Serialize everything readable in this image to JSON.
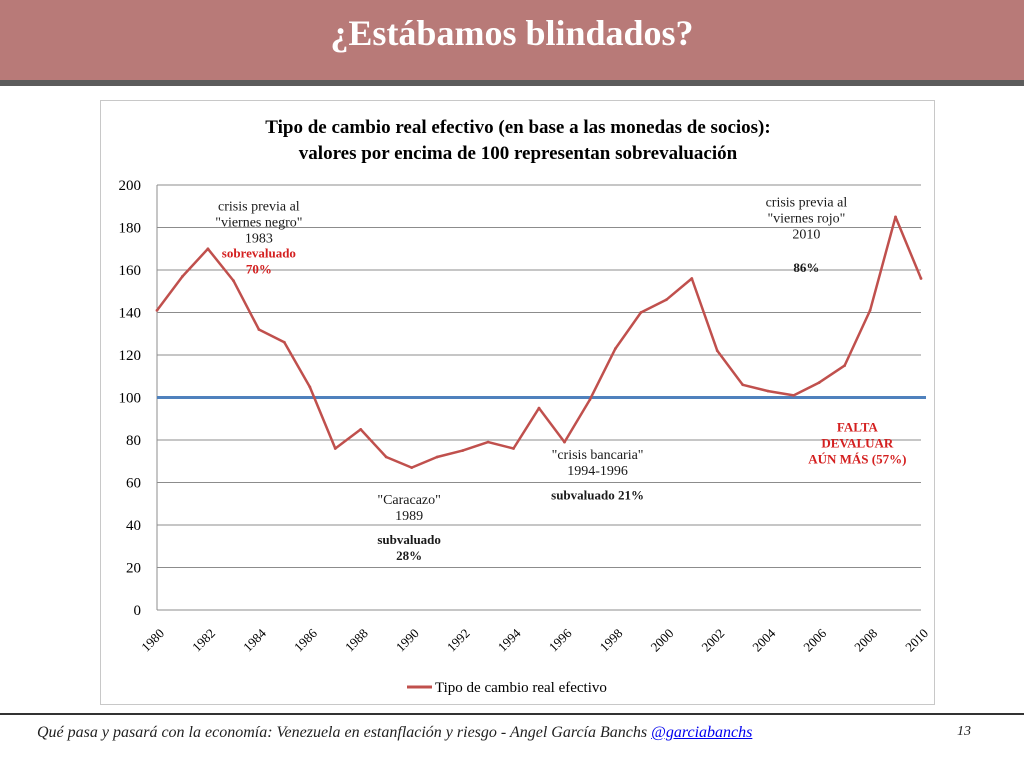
{
  "slide": {
    "title": "¿Estábamos blindados?",
    "footer_text": "Qué pasa y pasará con la economía: Venezuela en estanflación y riesgo - Angel García Banchs",
    "footer_link": "@garciabanchs",
    "page_number": "13"
  },
  "chart_data": {
    "type": "line",
    "title_lines": [
      "Tipo de cambio real efectivo (en base a las monedas de socios):",
      "valores por encima de 100 representan  sobrevaluación"
    ],
    "xlabel": "",
    "ylabel": "",
    "ylim": [
      0,
      200
    ],
    "yticks": [
      "0",
      "20",
      "40",
      "60",
      "80",
      "100",
      "120",
      "140",
      "160",
      "180",
      "200"
    ],
    "xlim": [
      1980,
      2010
    ],
    "xticks": [
      "1980",
      "1982",
      "1984",
      "1986",
      "1988",
      "1990",
      "1992",
      "1994",
      "1996",
      "1998",
      "2000",
      "2002",
      "2004",
      "2006",
      "2008",
      "2010"
    ],
    "grid": "horizontal",
    "legend_position": "bottom",
    "series": [
      {
        "name": "Tipo de cambio real efectivo",
        "color": "#c0504d",
        "x": [
          1980,
          1981,
          1982,
          1983,
          1984,
          1985,
          1986,
          1987,
          1988,
          1989,
          1990,
          1991,
          1992,
          1993,
          1994,
          1995,
          1996,
          1997,
          1998,
          1999,
          2000,
          2001,
          2002,
          2003,
          2004,
          2005,
          2006,
          2007,
          2008,
          2009,
          2010
        ],
        "values": [
          141,
          157,
          170,
          155,
          132,
          126,
          105,
          76,
          85,
          72,
          67,
          72,
          75,
          79,
          76,
          95,
          79,
          99,
          123,
          140,
          146,
          156,
          122,
          106,
          103,
          101,
          107,
          115,
          141,
          185,
          156
        ]
      }
    ],
    "reference_line": {
      "value": 100,
      "color": "#4f81bd"
    },
    "annotations": [
      {
        "lines": [
          "crisis previa al",
          "\"viernes negro\"",
          "1983"
        ],
        "x": 1984,
        "y": 188,
        "color": "#1a1a1a",
        "bold": false
      },
      {
        "lines": [
          "sobrevaluado",
          "70%"
        ],
        "x": 1984,
        "y": 166,
        "color": "#d42020",
        "bold": true
      },
      {
        "lines": [
          "crisis previa al",
          "\"viernes rojo\"",
          "2010"
        ],
        "x": 2005.5,
        "y": 190,
        "color": "#1a1a1a",
        "bold": false
      },
      {
        "lines": [
          "86%"
        ],
        "x": 2005.5,
        "y": 159,
        "color": "#1a1a1a",
        "bold": true
      },
      {
        "lines": [
          "FALTA",
          "DEVALUAR",
          "AÚN MÁS (57%)"
        ],
        "x": 2007.5,
        "y": 84,
        "color": "#d42020",
        "bold": true
      },
      {
        "lines": [
          "\"crisis bancaria\"",
          "1994-1996"
        ],
        "x": 1997.3,
        "y": 71,
        "color": "#1a1a1a",
        "bold": false
      },
      {
        "lines": [
          "subvaluado 21%"
        ],
        "x": 1997.3,
        "y": 52,
        "color": "#1a1a1a",
        "bold": true
      },
      {
        "lines": [
          "\"Caracazo\"",
          "1989"
        ],
        "x": 1989.9,
        "y": 50,
        "color": "#1a1a1a",
        "bold": false
      },
      {
        "lines": [
          "subvaluado",
          "28%"
        ],
        "x": 1989.9,
        "y": 31,
        "color": "#1a1a1a",
        "bold": true
      }
    ]
  }
}
